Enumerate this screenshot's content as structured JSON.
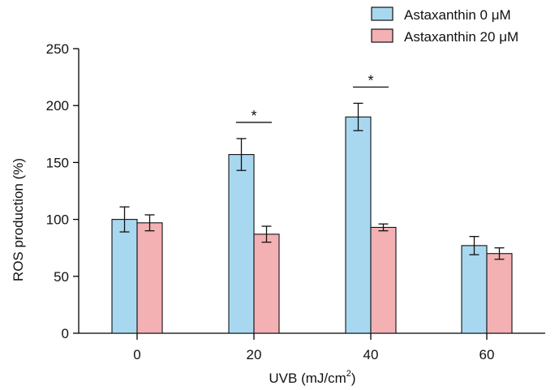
{
  "chart_data": {
    "type": "bar",
    "categories": [
      "0",
      "20",
      "40",
      "60"
    ],
    "series": [
      {
        "name": "Astaxanthin 0 μM",
        "color": "#a8d8f0",
        "values": [
          100,
          157,
          190,
          77
        ],
        "errors": [
          11,
          14,
          12,
          8
        ]
      },
      {
        "name": "Astaxanthin 20 μM",
        "color": "#f3b1b4",
        "values": [
          97,
          87,
          93,
          70
        ],
        "errors": [
          7,
          7,
          3,
          5
        ]
      }
    ],
    "xlabel": {
      "main": "UVB (mJ/cm",
      "superscript": "2",
      "close": ")"
    },
    "ylabel": "ROS production (%)",
    "ylim": [
      0,
      250
    ],
    "yticks": [
      "0",
      "50",
      "100",
      "150",
      "200",
      "250"
    ],
    "significance": [
      {
        "category": "20",
        "label": "*"
      },
      {
        "category": "40",
        "label": "*"
      }
    ],
    "grid": false,
    "legend_position": "top-right"
  }
}
